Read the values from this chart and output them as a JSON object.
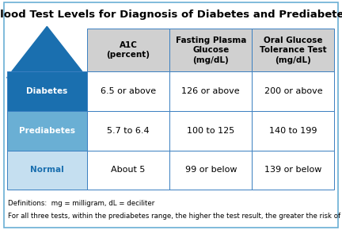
{
  "title": "Blood Test Levels for Diagnosis of Diabetes and Prediabetes",
  "col_headers": [
    "A1C\n(percent)",
    "Fasting Plasma\nGlucose\n(mg/dL)",
    "Oral Glucose\nTolerance Test\n(mg/dL)"
  ],
  "row_labels": [
    "Diabetes",
    "Prediabetes",
    "Normal"
  ],
  "cell_data": [
    [
      "6.5 or above",
      "126 or above",
      "200 or above"
    ],
    [
      "5.7 to 6.4",
      "100 to 125",
      "140 to 199"
    ],
    [
      "About 5",
      "99 or below",
      "139 or below"
    ]
  ],
  "row_label_colors": [
    "#1a6faf",
    "#6aafd4",
    "#c5dff0"
  ],
  "row_label_text_colors": [
    "#ffffff",
    "#ffffff",
    "#1a6faf"
  ],
  "header_bg_color": "#d0d0d0",
  "cell_bg_color": "#ffffff",
  "arrow_color": "#1a6faf",
  "border_color": "#3a7fc1",
  "outer_border_color": "#6aafd4",
  "title_fontsize": 9.5,
  "cell_fontsize": 8,
  "header_fontsize": 7.5,
  "label_fontsize": 7.5,
  "footnote1": "Definitions:  mg = milligram, dL = deciliter",
  "footnote2": "For all three tests, within the prediabetes range, the higher the test result, the greater the risk of diabetes.",
  "bg_color": "#ffffff"
}
